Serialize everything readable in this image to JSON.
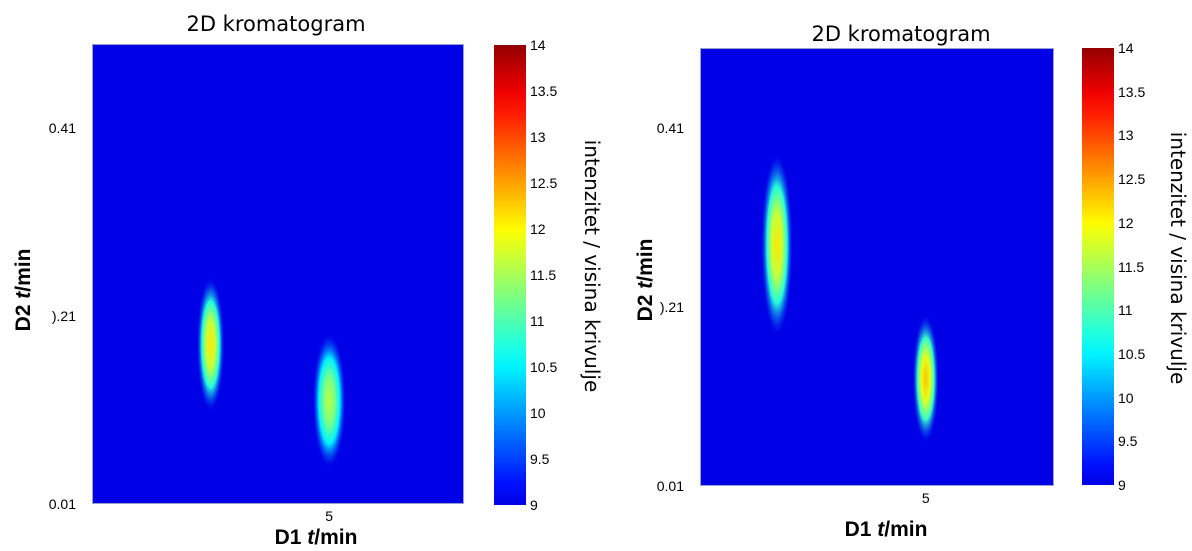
{
  "chart_data": [
    {
      "type": "heatmap",
      "title": "2D kromatogram",
      "xlabel_prefix": "D1 ",
      "xlabel_var": "t",
      "xlabel_unit": "/min",
      "ylabel_prefix": "D2 ",
      "ylabel_var": "t",
      "ylabel_unit": "/min",
      "colorbar_label": "intenzitet / visina krivulje",
      "x_ticks": [
        {
          "value": 5,
          "label": "5"
        }
      ],
      "y_ticks": [
        {
          "value": 0.01,
          "label": "0.01"
        },
        {
          "value": 0.21,
          "label": ").21"
        },
        {
          "value": 0.41,
          "label": "0.41"
        }
      ],
      "xlim": [
        0.6,
        7.5
      ],
      "ylim": [
        0.01,
        0.5
      ],
      "colorbar_range": [
        9,
        14
      ],
      "colorbar_ticks": [
        "14",
        "13.5",
        "13",
        "12.5",
        "12",
        "11.5",
        "11",
        "10.5",
        "10",
        "9.5",
        "9"
      ],
      "colormap": "jet",
      "background_value": 9,
      "peaks": [
        {
          "x": 2.8,
          "y": 0.18,
          "x_width": 0.25,
          "y_width": 0.07,
          "max_intensity": 12.0
        },
        {
          "x": 5.0,
          "y": 0.12,
          "x_width": 0.3,
          "y_width": 0.07,
          "max_intensity": 11.5
        }
      ]
    },
    {
      "type": "heatmap",
      "title": "2D kromatogram",
      "xlabel_prefix": "D1 ",
      "xlabel_var": "t",
      "xlabel_unit": "/min",
      "ylabel_prefix": "D2 ",
      "ylabel_var": "t",
      "ylabel_unit": "/min",
      "colorbar_label": "intenzitet / visina krivulje",
      "x_ticks": [
        {
          "value": 5,
          "label": "5"
        }
      ],
      "y_ticks": [
        {
          "value": 0.01,
          "label": "0.01"
        },
        {
          "value": 0.21,
          "label": ").21"
        },
        {
          "value": 0.41,
          "label": "0.41"
        }
      ],
      "xlim": [
        0.6,
        7.5
      ],
      "ylim": [
        0.01,
        0.5
      ],
      "colorbar_range": [
        9,
        14
      ],
      "colorbar_ticks": [
        "14",
        "13.5",
        "13",
        "12.5",
        "12",
        "11.5",
        "11",
        "10.5",
        "10",
        "9.5",
        "9"
      ],
      "colormap": "jet",
      "background_value": 9,
      "peaks": [
        {
          "x": 2.1,
          "y": 0.28,
          "x_width": 0.3,
          "y_width": 0.1,
          "max_intensity": 12.0
        },
        {
          "x": 5.0,
          "y": 0.13,
          "x_width": 0.25,
          "y_width": 0.07,
          "max_intensity": 12.2
        }
      ]
    }
  ]
}
